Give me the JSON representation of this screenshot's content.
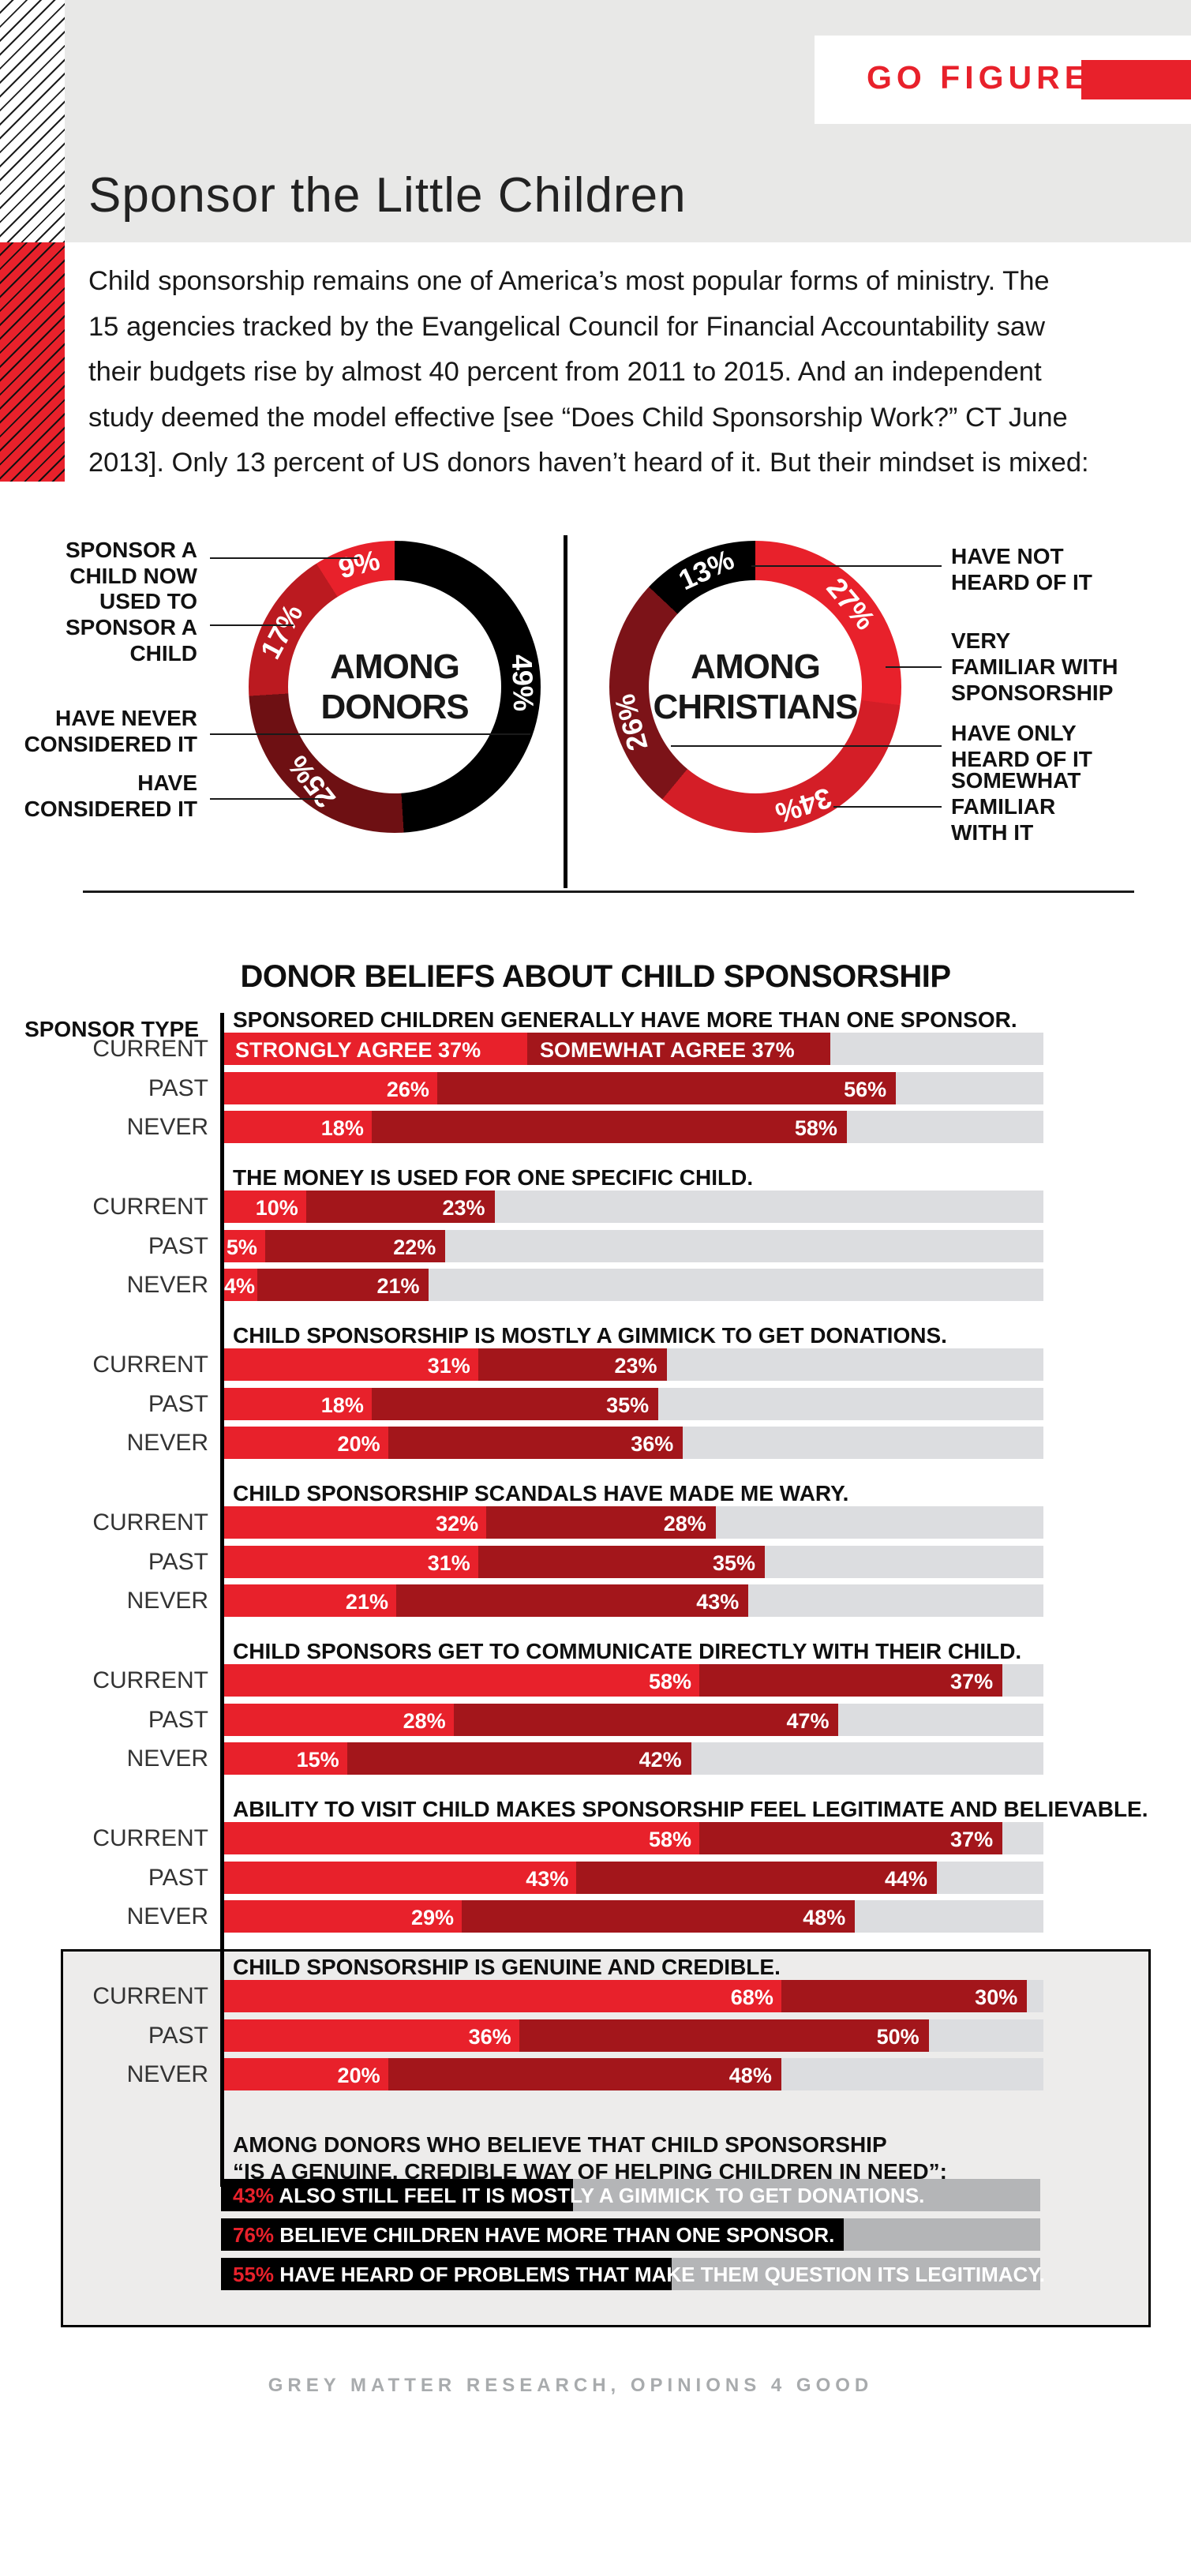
{
  "header": {
    "kicker": "GO FIGURE",
    "title": "Sponsor the Little Children",
    "intro_lines": [
      "Child sponsorship remains one of America’s most popular forms of ministry. The",
      "15 agencies tracked by the Evangelical Council for Financial Accountability saw",
      "their budgets rise by almost 40 percent from 2011 to 2015. And an independent",
      "study deemed the model effective [see “Does Child Sponsorship Work?” CT June",
      "2013]. Only 13 percent of US donors haven’t heard of it. But their mindset is mixed:"
    ]
  },
  "colors": {
    "accent_red": "#e8212b",
    "dark_red": "#a3161b",
    "mid_red": "#bb1a20",
    "maroon_donors": "#6e1013",
    "maroon_christians": "#7c1318",
    "deep_red": "#d41e27",
    "black": "#000000",
    "bar_track": "#dcdde0",
    "summary_track": "#b4b5b7",
    "header_band": "#e8e8e7",
    "box_bg": "#edeceb"
  },
  "chart_data": [
    {
      "type": "pie",
      "donut": true,
      "title": "AMONG DONORS",
      "center_lines": [
        "AMONG",
        "DONORS"
      ],
      "slices": [
        {
          "label": "HAVE NEVER CONSIDERED IT",
          "value": 49,
          "value_label": "49%",
          "color": "#000000"
        },
        {
          "label": "HAVE CONSIDERED IT",
          "value": 25,
          "value_label": "25%",
          "color": "#6e1013"
        },
        {
          "label": "USED TO SPONSOR A CHILD",
          "value": 17,
          "value_label": "17%",
          "color": "#bb1a20"
        },
        {
          "label": "SPONSOR A CHILD NOW",
          "value": 9,
          "value_label": "9%",
          "color": "#e8212b"
        }
      ],
      "callouts": [
        {
          "lines": [
            "SPONSOR A",
            "CHILD NOW"
          ]
        },
        {
          "lines": [
            "USED TO",
            "SPONSOR A",
            "CHILD"
          ]
        },
        {
          "lines": [
            "HAVE NEVER",
            "CONSIDERED IT"
          ]
        },
        {
          "lines": [
            "HAVE",
            "CONSIDERED IT"
          ]
        }
      ]
    },
    {
      "type": "pie",
      "donut": true,
      "title": "AMONG CHRISTIANS",
      "center_lines": [
        "AMONG",
        "CHRISTIANS"
      ],
      "slices": [
        {
          "label": "VERY FAMILIAR WITH SPONSORSHIP",
          "value": 27,
          "value_label": "27%",
          "color": "#e8212b"
        },
        {
          "label": "SOMEWHAT FAMILIAR WITH IT",
          "value": 34,
          "value_label": "34%",
          "color": "#d41e27"
        },
        {
          "label": "HAVE ONLY HEARD OF IT",
          "value": 26,
          "value_label": "26%",
          "color": "#7c1318"
        },
        {
          "label": "HAVE NOT HEARD OF IT",
          "value": 13,
          "value_label": "13%",
          "color": "#000000"
        }
      ],
      "callouts": [
        {
          "lines": [
            "HAVE NOT",
            "HEARD OF IT"
          ]
        },
        {
          "lines": [
            "VERY",
            "FAMILIAR WITH",
            "SPONSORSHIP"
          ]
        },
        {
          "lines": [
            "HAVE ONLY",
            "HEARD OF IT"
          ]
        },
        {
          "lines": [
            "SOMEWHAT",
            "FAMILIAR",
            "WITH IT"
          ]
        }
      ]
    },
    {
      "type": "bar",
      "orientation": "horizontal",
      "stacked": true,
      "xlim": [
        0,
        100
      ],
      "grid": false,
      "title": "DONOR BELIEFS ABOUT CHILD SPONSORSHIP",
      "group_axis_label": "SPONSOR TYPE",
      "categories": [
        "CURRENT",
        "PAST",
        "NEVER"
      ],
      "series_names": [
        "STRONGLY AGREE",
        "SOMEWHAT AGREE"
      ],
      "series_colors": [
        "#e8212b",
        "#a3161b"
      ],
      "questions": [
        {
          "statement": "SPONSORED CHILDREN GENERALLY HAVE MORE THAN ONE SPONSOR.",
          "rows": [
            {
              "values": [
                37,
                37
              ],
              "labels": [
                "STRONGLY AGREE 37%",
                "SOMEWHAT AGREE 37%"
              ]
            },
            {
              "values": [
                26,
                56
              ],
              "labels": [
                "26%",
                "56%"
              ]
            },
            {
              "values": [
                18,
                58
              ],
              "labels": [
                "18%",
                "58%"
              ]
            }
          ]
        },
        {
          "statement": "THE MONEY IS USED FOR ONE SPECIFIC CHILD.",
          "rows": [
            {
              "values": [
                10,
                23
              ],
              "labels": [
                "10%",
                "23%"
              ]
            },
            {
              "values": [
                5,
                22
              ],
              "labels": [
                "5%",
                "22%"
              ]
            },
            {
              "values": [
                4,
                21
              ],
              "labels": [
                "4%",
                "21%"
              ]
            }
          ]
        },
        {
          "statement": "CHILD SPONSORSHIP IS MOSTLY A GIMMICK TO GET DONATIONS.",
          "rows": [
            {
              "values": [
                31,
                23
              ],
              "labels": [
                "31%",
                "23%"
              ]
            },
            {
              "values": [
                18,
                35
              ],
              "labels": [
                "18%",
                "35%"
              ]
            },
            {
              "values": [
                20,
                36
              ],
              "labels": [
                "20%",
                "36%"
              ]
            }
          ]
        },
        {
          "statement": "CHILD SPONSORSHIP SCANDALS HAVE MADE ME WARY.",
          "rows": [
            {
              "values": [
                32,
                28
              ],
              "labels": [
                "32%",
                "28%"
              ]
            },
            {
              "values": [
                31,
                35
              ],
              "labels": [
                "31%",
                "35%"
              ]
            },
            {
              "values": [
                21,
                43
              ],
              "labels": [
                "21%",
                "43%"
              ]
            }
          ]
        },
        {
          "statement": "CHILD SPONSORS GET TO COMMUNICATE DIRECTLY WITH THEIR CHILD.",
          "rows": [
            {
              "values": [
                58,
                37
              ],
              "labels": [
                "58%",
                "37%"
              ]
            },
            {
              "values": [
                28,
                47
              ],
              "labels": [
                "28%",
                "47%"
              ]
            },
            {
              "values": [
                15,
                42
              ],
              "labels": [
                "15%",
                "42%"
              ]
            }
          ]
        },
        {
          "statement": "ABILITY TO VISIT CHILD MAKES SPONSORSHIP FEEL LEGITIMATE AND BELIEVABLE.",
          "rows": [
            {
              "values": [
                58,
                37
              ],
              "labels": [
                "58%",
                "37%"
              ]
            },
            {
              "values": [
                43,
                44
              ],
              "labels": [
                "43%",
                "44%"
              ]
            },
            {
              "values": [
                29,
                48
              ],
              "labels": [
                "29%",
                "48%"
              ]
            }
          ]
        },
        {
          "statement": "CHILD SPONSORSHIP IS GENUINE AND CREDIBLE.",
          "boxed": true,
          "rows": [
            {
              "values": [
                68,
                30
              ],
              "labels": [
                "68%",
                "30%"
              ]
            },
            {
              "values": [
                36,
                50
              ],
              "labels": [
                "36%",
                "50%"
              ]
            },
            {
              "values": [
                20,
                48
              ],
              "labels": [
                "20%",
                "48%"
              ]
            }
          ]
        }
      ]
    },
    {
      "type": "bar",
      "orientation": "horizontal",
      "xlim": [
        0,
        100
      ],
      "heading_lines": [
        "AMONG DONORS WHO BELIEVE THAT CHILD SPONSORSHIP",
        "“IS A GENUINE, CREDIBLE WAY OF HELPING CHILDREN IN NEED”:"
      ],
      "bar_color": "#000000",
      "track_color": "#b4b5b7",
      "bars": [
        {
          "value": 43,
          "pct_label": "43%",
          "text": "ALSO STILL FEEL IT IS MOSTLY A GIMMICK TO GET DONATIONS."
        },
        {
          "value": 76,
          "pct_label": "76%",
          "text": "BELIEVE CHILDREN HAVE MORE THAN ONE SPONSOR."
        },
        {
          "value": 55,
          "pct_label": "55%",
          "text": "HAVE HEARD OF PROBLEMS THAT MAKE THEM QUESTION ITS LEGITIMACY."
        }
      ]
    }
  ],
  "footer": {
    "credit": "GREY MATTER RESEARCH, OPINIONS 4 GOOD"
  }
}
